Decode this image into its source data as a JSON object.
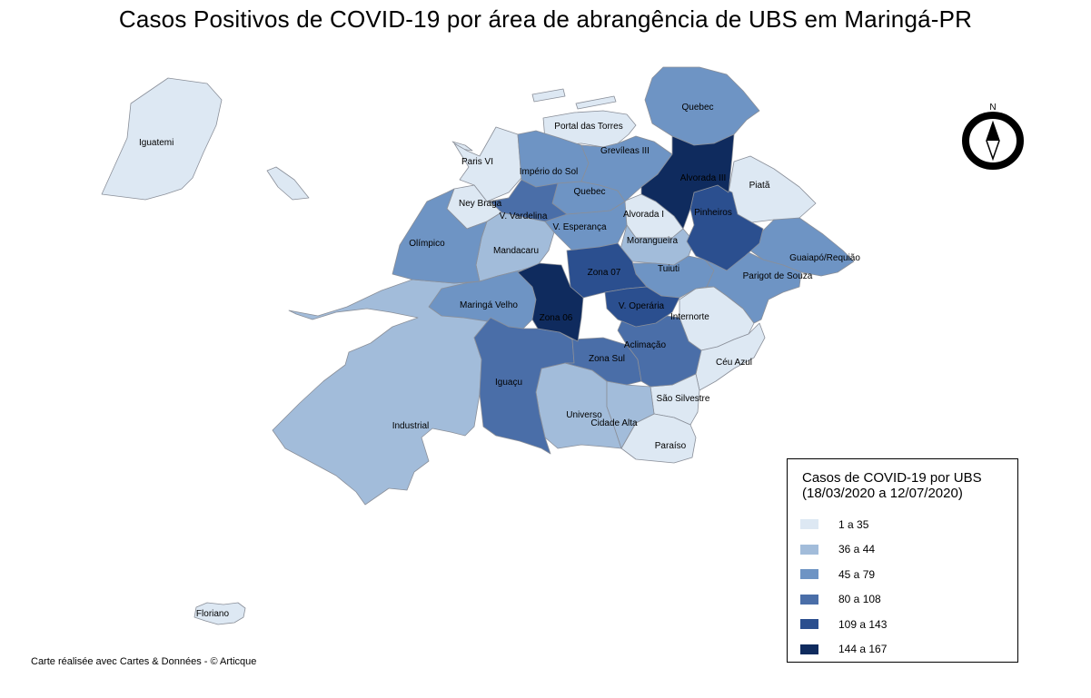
{
  "title": "Casos Positivos de COVID-19 por área  de abrangência de UBS em Maringá-PR",
  "credit": "Carte réalisée avec Cartes & Données - © Articque",
  "north_label": "N",
  "legend": {
    "title_line1": "Casos de COVID-19 por UBS",
    "title_line2": "(18/03/2020 a 12/07/2020)",
    "placement": "bottom-right",
    "classes": [
      {
        "label": "1 a 35",
        "color": "#dde8f3"
      },
      {
        "label": "36 a 44",
        "color": "#a2bcda"
      },
      {
        "label": "45 a 79",
        "color": "#6e94c4"
      },
      {
        "label": "80 a 108",
        "color": "#4a6ea8"
      },
      {
        "label": "109 a 143",
        "color": "#2b4f8f"
      },
      {
        "label": "144 a 167",
        "color": "#0f2b5e"
      }
    ]
  },
  "regions": [
    {
      "name": "Iguatemi",
      "class": 0
    },
    {
      "name": "Floriano",
      "class": 0
    },
    {
      "name": "Portal das Torres",
      "class": 0
    },
    {
      "name": "Paris VI",
      "class": 0
    },
    {
      "name": "Ney Braga",
      "class": 0
    },
    {
      "name": "Piatã",
      "class": 0
    },
    {
      "name": "Internorte",
      "class": 0
    },
    {
      "name": "Céu Azul",
      "class": 0
    },
    {
      "name": "São Silvestre",
      "class": 0
    },
    {
      "name": "Paraíso",
      "class": 0
    },
    {
      "name": "Alvorada I",
      "class": 0
    },
    {
      "name": "Mandacaru",
      "class": 1
    },
    {
      "name": "Morangueira",
      "class": 1
    },
    {
      "name": "Industrial",
      "class": 1
    },
    {
      "name": "Universo",
      "class": 1
    },
    {
      "name": "Cidade Alta",
      "class": 1
    },
    {
      "name": "Quebec",
      "class": 2
    },
    {
      "name": "Império do Sol",
      "class": 2
    },
    {
      "name": "Quebec",
      "class": 2
    },
    {
      "name": "Grevíleas III",
      "class": 2
    },
    {
      "name": "V. Esperança",
      "class": 2
    },
    {
      "name": "Olímpico",
      "class": 2
    },
    {
      "name": "Maringá Velho",
      "class": 2
    },
    {
      "name": "Tuiuti",
      "class": 2
    },
    {
      "name": "Guaiapó/Requião",
      "class": 2
    },
    {
      "name": "Parigot de Souza",
      "class": 2
    },
    {
      "name": "V. Vardelina",
      "class": 3
    },
    {
      "name": "Iguaçu",
      "class": 3
    },
    {
      "name": "Zona Sul",
      "class": 3
    },
    {
      "name": "Aclimação",
      "class": 3
    },
    {
      "name": "Zona 07",
      "class": 4
    },
    {
      "name": "V. Operária",
      "class": 4
    },
    {
      "name": "Pinheiros",
      "class": 4
    },
    {
      "name": "Alvorada III",
      "class": 5
    },
    {
      "name": "Zona 06",
      "class": 5
    }
  ]
}
